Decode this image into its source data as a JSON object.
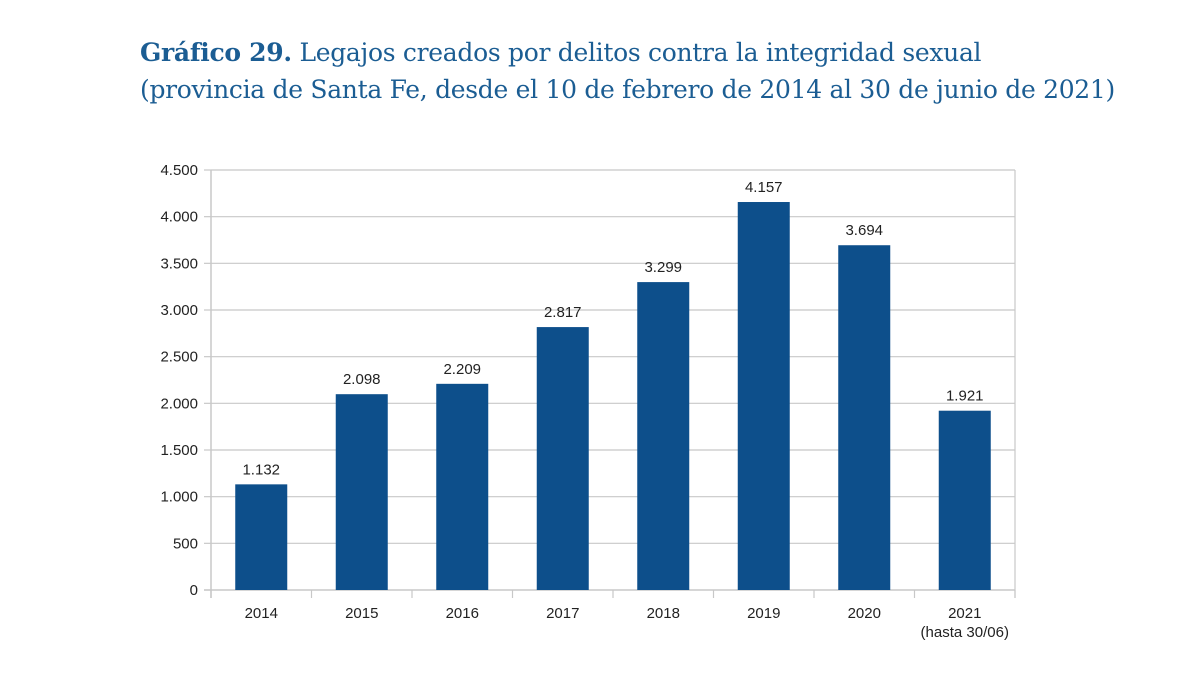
{
  "title": {
    "bold": "Gráfico 29.",
    "line1": "Legajos creados por delitos contra la integridad sexual",
    "line2": "(provincia de Santa Fe, desde el 10 de febrero de 2014 al 30 de junio de 2021)"
  },
  "colors": {
    "bar": "#0d4f8b",
    "title": "#1b5d93",
    "grid": "#c8c8c8"
  },
  "chart_data": {
    "type": "bar",
    "title": "Gráfico 29. Legajos creados por delitos contra la integridad sexual (provincia de Santa Fe, desde el 10 de febrero de 2014 al 30 de junio de 2021)",
    "xlabel": "",
    "ylabel": "",
    "categories": [
      "2014",
      "2015",
      "2016",
      "2017",
      "2018",
      "2019",
      "2020",
      "2021"
    ],
    "category_sublabels": [
      "",
      "",
      "",
      "",
      "",
      "",
      "",
      "(hasta 30/06)"
    ],
    "values": [
      1132,
      2098,
      2209,
      2817,
      3299,
      4157,
      3694,
      1921
    ],
    "value_labels": [
      "1.132",
      "2.098",
      "2.209",
      "2.817",
      "3.299",
      "4.157",
      "3.694",
      "1.921"
    ],
    "ylim": [
      0,
      4500
    ],
    "yticks": [
      0,
      500,
      1000,
      1500,
      2000,
      2500,
      3000,
      3500,
      4000,
      4500
    ],
    "ytick_labels": [
      "0",
      "500",
      "1.000",
      "1.500",
      "2.000",
      "2.500",
      "3.000",
      "3.500",
      "4.000",
      "4.500"
    ],
    "grid": true,
    "legend": "none"
  }
}
